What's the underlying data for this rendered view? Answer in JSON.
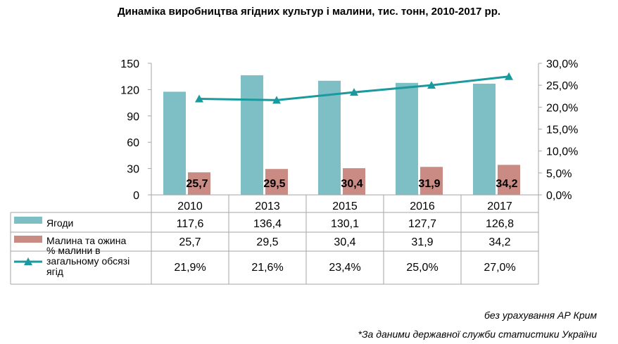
{
  "chart_data": {
    "type": "bar",
    "title": "Динаміка виробництва ягідних культур і малини, тис. тонн, 2010-2017 рр.",
    "categories": [
      "2010",
      "2013",
      "2015",
      "2016",
      "2017"
    ],
    "series": [
      {
        "name": "Ягоди",
        "type": "bar",
        "axis": "left",
        "color": "#7dbfc5",
        "values": [
          117.6,
          136.4,
          130.1,
          127.7,
          126.8
        ],
        "labels": [
          "117,6",
          "136,4",
          "130,1",
          "127,7",
          "126,8"
        ]
      },
      {
        "name": "Малина та ожина",
        "type": "bar",
        "axis": "left",
        "color": "#c98b84",
        "values": [
          25.7,
          29.5,
          30.4,
          31.9,
          34.2
        ],
        "labels": [
          "25,7",
          "29,5",
          "30,4",
          "31,9",
          "34,2"
        ]
      },
      {
        "name": "% малини в загальному обсязі ягід",
        "type": "line",
        "axis": "right",
        "color": "#1a9a9e",
        "marker": "triangle",
        "values": [
          21.9,
          21.6,
          23.4,
          25.0,
          27.0
        ],
        "labels": [
          "21,9%",
          "21,6%",
          "23,4%",
          "25,0%",
          "27,0%"
        ]
      }
    ],
    "y_left": {
      "ylim": [
        0,
        150
      ],
      "ticks": [
        "0",
        "30",
        "60",
        "90",
        "120",
        "150"
      ],
      "tick_values": [
        0,
        30,
        60,
        90,
        120,
        150
      ]
    },
    "y_right": {
      "ylim": [
        0,
        30
      ],
      "ticks": [
        "0,0%",
        "5,0%",
        "10,0%",
        "15,0%",
        "20,0%",
        "25,0%",
        "30,0%"
      ],
      "tick_values": [
        0,
        5,
        10,
        15,
        20,
        25,
        30
      ]
    },
    "grid": false,
    "legend": "data-table"
  },
  "notes": [
    "без урахування АР Крим",
    "*За даними державної служби статистики України"
  ]
}
